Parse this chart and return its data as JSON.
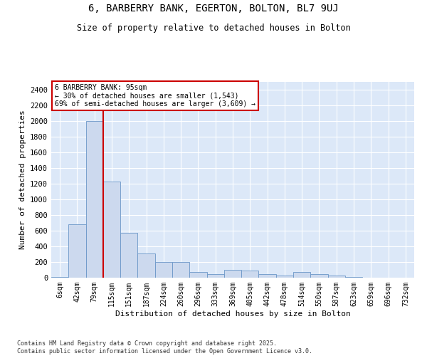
{
  "title1": "6, BARBERRY BANK, EGERTON, BOLTON, BL7 9UJ",
  "title2": "Size of property relative to detached houses in Bolton",
  "xlabel": "Distribution of detached houses by size in Bolton",
  "ylabel": "Number of detached properties",
  "categories": [
    "6sqm",
    "42sqm",
    "79sqm",
    "115sqm",
    "151sqm",
    "187sqm",
    "224sqm",
    "260sqm",
    "296sqm",
    "333sqm",
    "369sqm",
    "405sqm",
    "442sqm",
    "478sqm",
    "514sqm",
    "550sqm",
    "587sqm",
    "623sqm",
    "659sqm",
    "696sqm",
    "732sqm"
  ],
  "values": [
    5,
    680,
    2000,
    1230,
    570,
    310,
    200,
    200,
    75,
    45,
    100,
    95,
    45,
    25,
    75,
    45,
    25,
    8,
    4,
    4,
    4
  ],
  "bar_color": "#ccd9ee",
  "bar_edge_color": "#6a96c8",
  "annotation_box_text": "6 BARBERRY BANK: 95sqm\n← 30% of detached houses are smaller (1,543)\n69% of semi-detached houses are larger (3,609) →",
  "annotation_box_color": "#ffffff",
  "annotation_box_edge_color": "#cc0000",
  "red_line_bar_index": 2,
  "background_color": "#dce8f8",
  "grid_color": "#ffffff",
  "footer_text": "Contains HM Land Registry data © Crown copyright and database right 2025.\nContains public sector information licensed under the Open Government Licence v3.0.",
  "ylim": [
    0,
    2500
  ],
  "yticks": [
    0,
    200,
    400,
    600,
    800,
    1000,
    1200,
    1400,
    1600,
    1800,
    2000,
    2200,
    2400
  ],
  "fig_width": 6.0,
  "fig_height": 5.0,
  "dpi": 100
}
